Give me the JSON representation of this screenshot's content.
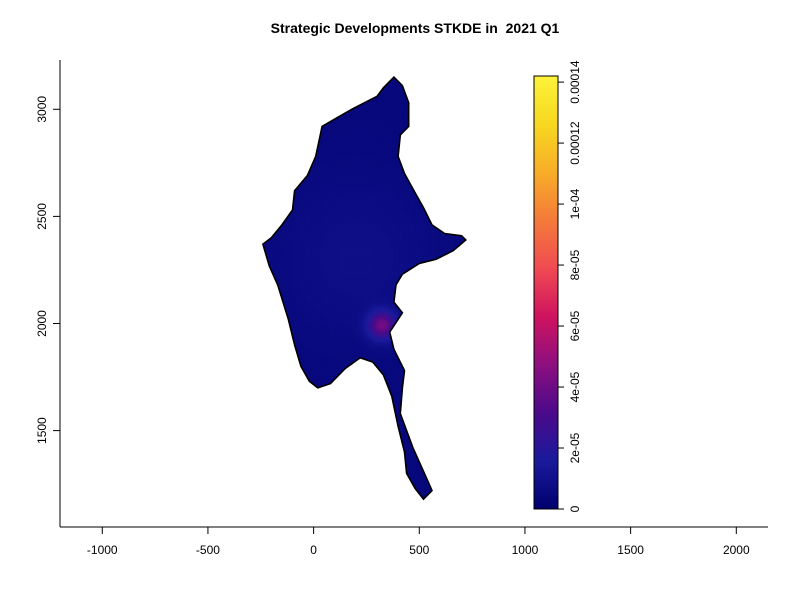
{
  "chart_data": {
    "type": "heatmap",
    "title": "Strategic Developments STKDE in  2021 Q1",
    "xlabel": "",
    "ylabel": "",
    "xlim": [
      -1200,
      2150
    ],
    "ylim": [
      1050,
      3230
    ],
    "x_ticks": [
      -1000,
      -500,
      0,
      500,
      1000,
      1500,
      2000
    ],
    "x_tick_labels": [
      "-1000",
      "-500",
      "0",
      "500",
      "1000",
      "1500",
      "2000"
    ],
    "y_ticks": [
      1500,
      2000,
      2500,
      3000
    ],
    "y_tick_labels": [
      "1500",
      "2000",
      "2500",
      "3000"
    ],
    "colorbar": {
      "min": 0,
      "max": 0.000142,
      "ticks": [
        0,
        2e-05,
        4e-05,
        6e-05,
        8e-05,
        0.0001,
        0.00012,
        0.00014
      ],
      "tick_labels": [
        "0",
        "2e-05",
        "4e-05",
        "6e-05",
        "8e-05",
        "1e-04",
        "0.00012",
        "0.00014"
      ],
      "palette": [
        "#00006e",
        "#1a1a9c",
        "#4b0a8a",
        "#8c0f7f",
        "#d0135f",
        "#f04a52",
        "#f47a3a",
        "#f8ad28",
        "#f7d820",
        "#fdf23a"
      ]
    },
    "region": {
      "outline": [
        [
          380,
          3150
        ],
        [
          420,
          3110
        ],
        [
          450,
          3030
        ],
        [
          450,
          2920
        ],
        [
          410,
          2880
        ],
        [
          400,
          2780
        ],
        [
          430,
          2700
        ],
        [
          480,
          2610
        ],
        [
          520,
          2540
        ],
        [
          560,
          2460
        ],
        [
          620,
          2420
        ],
        [
          700,
          2410
        ],
        [
          720,
          2390
        ],
        [
          660,
          2340
        ],
        [
          580,
          2300
        ],
        [
          500,
          2280
        ],
        [
          420,
          2230
        ],
        [
          390,
          2180
        ],
        [
          380,
          2100
        ],
        [
          420,
          2050
        ],
        [
          360,
          1960
        ],
        [
          380,
          1880
        ],
        [
          430,
          1780
        ],
        [
          420,
          1700
        ],
        [
          410,
          1580
        ],
        [
          470,
          1420
        ],
        [
          520,
          1310
        ],
        [
          560,
          1220
        ],
        [
          520,
          1180
        ],
        [
          480,
          1230
        ],
        [
          440,
          1300
        ],
        [
          430,
          1400
        ],
        [
          400,
          1520
        ],
        [
          370,
          1660
        ],
        [
          330,
          1760
        ],
        [
          280,
          1820
        ],
        [
          220,
          1840
        ],
        [
          150,
          1790
        ],
        [
          80,
          1720
        ],
        [
          20,
          1700
        ],
        [
          -20,
          1730
        ],
        [
          -60,
          1800
        ],
        [
          -90,
          1900
        ],
        [
          -120,
          2020
        ],
        [
          -170,
          2180
        ],
        [
          -210,
          2270
        ],
        [
          -240,
          2370
        ],
        [
          -200,
          2400
        ],
        [
          -150,
          2460
        ],
        [
          -100,
          2530
        ],
        [
          -90,
          2620
        ],
        [
          -30,
          2690
        ],
        [
          10,
          2780
        ],
        [
          40,
          2920
        ],
        [
          110,
          2960
        ],
        [
          180,
          3000
        ],
        [
          240,
          3030
        ],
        [
          300,
          3060
        ],
        [
          330,
          3100
        ]
      ],
      "base_value": 5e-06,
      "hotspots": [
        {
          "x": 320,
          "y": 1990,
          "sigma": 45,
          "value": 3.5e-05
        },
        {
          "x": 200,
          "y": 2300,
          "sigma": 260,
          "value": 4e-06
        }
      ]
    }
  }
}
